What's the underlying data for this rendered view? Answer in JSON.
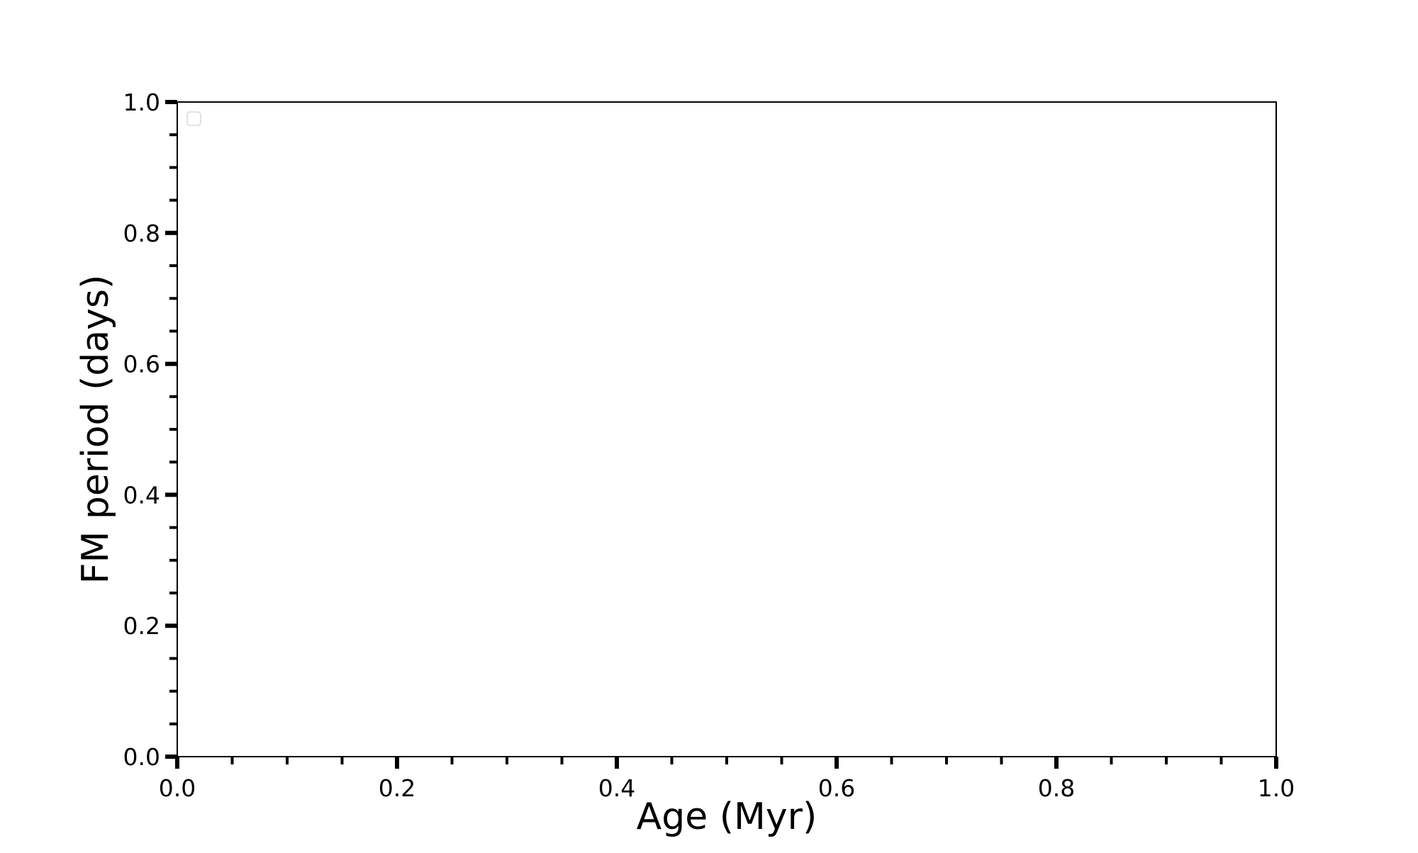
{
  "chart_data": {
    "type": "scatter",
    "title": "",
    "xlabel": "Age (Myr)",
    "ylabel": "FM period (days)",
    "xlim": [
      0.0,
      1.0
    ],
    "ylim": [
      0.0,
      1.0
    ],
    "x_ticks": [
      "0.0",
      "0.2",
      "0.4",
      "0.6",
      "0.8",
      "1.0"
    ],
    "y_ticks": [
      "0.0",
      "0.2",
      "0.4",
      "0.6",
      "0.8",
      "1.0"
    ],
    "minor_tick_step": 0.05,
    "series": [],
    "legend": {
      "placement": "top-left",
      "entries": []
    },
    "grid": false
  }
}
